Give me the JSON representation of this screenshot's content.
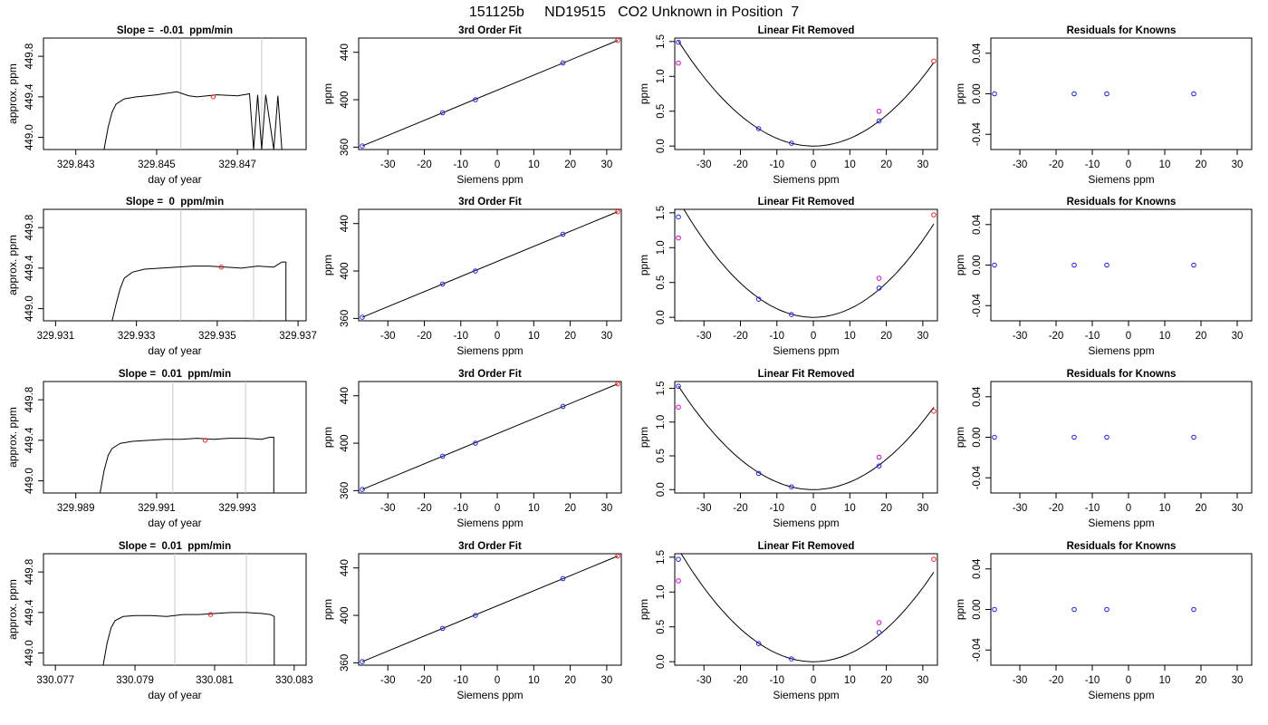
{
  "page_title": "151125b     ND19515   CO2 Unknown in Position  7",
  "colors": {
    "line": "#000000",
    "vline": "#c8c8c8",
    "known": "#1f1fff",
    "fit": "#ff2020",
    "removed_unknown": "#dd00dd"
  },
  "chart_data": [
    {
      "type": "line",
      "row": 0,
      "col": 0,
      "title": "Slope =  -0.01  ppm/min",
      "xlabel": "day of year",
      "ylabel": "approx. ppm",
      "xlim": [
        329.8422,
        329.8487
      ],
      "ylim": [
        448.88,
        449.98
      ],
      "xticks": [
        329.843,
        329.845,
        329.847
      ],
      "xticklabels": [
        "329.843",
        "329.845",
        "329.847"
      ],
      "yticks": [
        449.0,
        449.4,
        449.8
      ],
      "yticklabels": [
        "449.0",
        "449.4",
        "449.8"
      ],
      "x": [
        329.8437,
        329.8438,
        329.8439,
        329.844,
        329.8442,
        329.8445,
        329.845,
        329.8455,
        329.8458,
        329.846,
        329.8465,
        329.847,
        329.8473,
        329.8474,
        329.8475,
        329.8476,
        329.8477,
        329.8479,
        329.848,
        329.8481
      ],
      "y": [
        448.88,
        449.1,
        449.25,
        449.33,
        449.38,
        449.4,
        449.42,
        449.45,
        449.41,
        449.4,
        449.42,
        449.41,
        449.43,
        448.88,
        449.42,
        448.88,
        449.42,
        448.88,
        449.41,
        448.88
      ],
      "vlines": [
        329.8456,
        329.8476
      ],
      "marker": {
        "x": 329.8464,
        "y": 449.4
      }
    },
    {
      "type": "scatter",
      "row": 0,
      "col": 1,
      "title": "3rd Order Fit",
      "xlabel": "Siemens ppm",
      "ylabel": "ppm",
      "xlim": [
        -38,
        34
      ],
      "ylim": [
        358,
        452
      ],
      "xticks": [
        -30,
        -20,
        -10,
        0,
        10,
        20,
        30
      ],
      "yticks": [
        360,
        400,
        440
      ],
      "fit_x": [
        -37,
        33
      ],
      "fit_y": [
        361,
        450
      ],
      "knowns": [
        [
          -37,
          361
        ],
        [
          -15,
          389
        ],
        [
          -6,
          400
        ],
        [
          18,
          431
        ]
      ],
      "unknown": [
        [
          33,
          450
        ]
      ]
    },
    {
      "type": "scatter",
      "row": 0,
      "col": 2,
      "title": "Linear Fit Removed",
      "xlabel": "Siemens ppm",
      "ylabel": "ppm",
      "xlim": [
        -38,
        34
      ],
      "ylim": [
        -0.05,
        1.55
      ],
      "xticks": [
        -30,
        -20,
        -10,
        0,
        10,
        20,
        30
      ],
      "yticks": [
        0.0,
        0.5,
        1.0,
        1.5
      ],
      "yticklabels": [
        "0.0",
        "0.5",
        "1.0",
        "1.5"
      ],
      "curve_coef": [
        0.0011,
        0
      ],
      "curve_range": [
        -37,
        33
      ],
      "knowns": [
        [
          -37,
          1.49
        ],
        [
          -15,
          0.25
        ],
        [
          -6,
          0.04
        ],
        [
          18,
          0.36
        ]
      ],
      "removed": [
        [
          -37,
          1.19
        ],
        [
          18,
          0.5
        ]
      ],
      "unknown": [
        [
          33,
          1.22
        ]
      ]
    },
    {
      "type": "scatter",
      "row": 0,
      "col": 3,
      "title": "Residuals for Knowns",
      "xlabel": "Siemens ppm",
      "ylabel": "ppm",
      "xlim": [
        -38,
        34
      ],
      "ylim": [
        -0.055,
        0.055
      ],
      "xticks": [
        -30,
        -20,
        -10,
        0,
        10,
        20,
        30
      ],
      "yticks": [
        -0.04,
        0.0,
        0.04
      ],
      "yticklabels": [
        "-0.04",
        "0.00",
        "0.04"
      ],
      "knowns": [
        [
          -37,
          0.0
        ],
        [
          -15,
          0.0
        ],
        [
          -6,
          0.0
        ],
        [
          18,
          0.0
        ]
      ]
    },
    {
      "type": "line",
      "row": 1,
      "col": 0,
      "title": "Slope =  0  ppm/min",
      "xlabel": "day of year",
      "ylabel": "approx. ppm",
      "xlim": [
        329.9307,
        329.9372
      ],
      "ylim": [
        448.88,
        449.98
      ],
      "xticks": [
        329.931,
        329.933,
        329.935,
        329.937
      ],
      "xticklabels": [
        "329.931",
        "329.933",
        "329.935",
        "329.937"
      ],
      "yticks": [
        449.0,
        449.4,
        449.8
      ],
      "yticklabels": [
        "449.0",
        "449.4",
        "449.8"
      ],
      "x": [
        329.9324,
        329.9325,
        329.9326,
        329.9327,
        329.9329,
        329.9332,
        329.9336,
        329.934,
        329.9344,
        329.9348,
        329.9352,
        329.9356,
        329.936,
        329.9364,
        329.9366,
        329.9367,
        329.9367
      ],
      "y": [
        448.88,
        449.05,
        449.2,
        449.3,
        449.36,
        449.39,
        449.4,
        449.41,
        449.42,
        449.42,
        449.41,
        449.4,
        449.42,
        449.41,
        449.46,
        449.46,
        448.88
      ],
      "vlines": [
        329.9341,
        329.9359
      ],
      "marker": {
        "x": 329.9351,
        "y": 449.41
      }
    },
    {
      "type": "scatter",
      "row": 1,
      "col": 1,
      "title": "3rd Order Fit",
      "xlabel": "Siemens ppm",
      "ylabel": "ppm",
      "xlim": [
        -38,
        34
      ],
      "ylim": [
        358,
        452
      ],
      "xticks": [
        -30,
        -20,
        -10,
        0,
        10,
        20,
        30
      ],
      "yticks": [
        360,
        400,
        440
      ],
      "fit_x": [
        -37,
        33
      ],
      "fit_y": [
        361,
        450
      ],
      "knowns": [
        [
          -37,
          361
        ],
        [
          -15,
          389
        ],
        [
          -6,
          400
        ],
        [
          18,
          431
        ]
      ],
      "unknown": [
        [
          33,
          450
        ]
      ]
    },
    {
      "type": "scatter",
      "row": 1,
      "col": 2,
      "title": "Linear Fit Removed",
      "xlabel": "Siemens ppm",
      "ylabel": "ppm",
      "xlim": [
        -38,
        34
      ],
      "ylim": [
        -0.05,
        1.55
      ],
      "xticks": [
        -30,
        -20,
        -10,
        0,
        10,
        20,
        30
      ],
      "yticks": [
        0.0,
        0.5,
        1.0,
        1.5
      ],
      "yticklabels": [
        "0.0",
        "0.5",
        "1.0",
        "1.5"
      ],
      "curve_coef": [
        0.00123,
        0
      ],
      "curve_range": [
        -37,
        33
      ],
      "knowns": [
        [
          -37,
          1.44
        ],
        [
          -15,
          0.26
        ],
        [
          -6,
          0.04
        ],
        [
          18,
          0.42
        ]
      ],
      "removed": [
        [
          -37,
          1.14
        ],
        [
          18,
          0.56
        ]
      ],
      "unknown": [
        [
          33,
          1.47
        ]
      ]
    },
    {
      "type": "scatter",
      "row": 1,
      "col": 3,
      "title": "Residuals for Knowns",
      "xlabel": "Siemens ppm",
      "ylabel": "ppm",
      "xlim": [
        -38,
        34
      ],
      "ylim": [
        -0.055,
        0.055
      ],
      "xticks": [
        -30,
        -20,
        -10,
        0,
        10,
        20,
        30
      ],
      "yticks": [
        -0.04,
        0.0,
        0.04
      ],
      "yticklabels": [
        "-0.04",
        "0.00",
        "0.04"
      ],
      "knowns": [
        [
          -37,
          0.0
        ],
        [
          -15,
          0.0
        ],
        [
          -6,
          0.0
        ],
        [
          18,
          0.0
        ]
      ]
    },
    {
      "type": "line",
      "row": 2,
      "col": 0,
      "title": "Slope =  0.01  ppm/min",
      "xlabel": "day of year",
      "ylabel": "approx. ppm",
      "xlim": [
        329.9882,
        329.9947
      ],
      "ylim": [
        448.88,
        449.98
      ],
      "xticks": [
        329.989,
        329.991,
        329.993
      ],
      "xticklabels": [
        "329.989",
        "329.991",
        "329.993"
      ],
      "yticks": [
        449.0,
        449.4,
        449.8
      ],
      "yticklabels": [
        "449.0",
        "449.4",
        "449.8"
      ],
      "x": [
        329.9896,
        329.9897,
        329.9898,
        329.9899,
        329.9901,
        329.9904,
        329.9908,
        329.9912,
        329.9916,
        329.992,
        329.9924,
        329.9928,
        329.9932,
        329.9936,
        329.9938,
        329.9939,
        329.9939
      ],
      "y": [
        448.88,
        449.1,
        449.25,
        449.32,
        449.37,
        449.39,
        449.4,
        449.41,
        449.41,
        449.42,
        449.41,
        449.42,
        449.42,
        449.41,
        449.43,
        449.43,
        448.88
      ],
      "vlines": [
        329.9914,
        329.9932
      ],
      "marker": {
        "x": 329.9922,
        "y": 449.4
      }
    },
    {
      "type": "scatter",
      "row": 2,
      "col": 1,
      "title": "3rd Order Fit",
      "xlabel": "Siemens ppm",
      "ylabel": "ppm",
      "xlim": [
        -38,
        34
      ],
      "ylim": [
        358,
        452
      ],
      "xticks": [
        -30,
        -20,
        -10,
        0,
        10,
        20,
        30
      ],
      "yticks": [
        360,
        400,
        440
      ],
      "fit_x": [
        -37,
        33
      ],
      "fit_y": [
        361,
        450
      ],
      "knowns": [
        [
          -37,
          361
        ],
        [
          -15,
          389
        ],
        [
          -6,
          400
        ],
        [
          18,
          431
        ]
      ],
      "unknown": [
        [
          33,
          450
        ]
      ]
    },
    {
      "type": "scatter",
      "row": 2,
      "col": 2,
      "title": "Linear Fit Removed",
      "xlabel": "Siemens ppm",
      "ylabel": "ppm",
      "xlim": [
        -38,
        34
      ],
      "ylim": [
        -0.05,
        1.6
      ],
      "xticks": [
        -30,
        -20,
        -10,
        0,
        10,
        20,
        30
      ],
      "yticks": [
        0.0,
        0.5,
        1.0,
        1.5
      ],
      "yticklabels": [
        "0.0",
        "0.5",
        "1.0",
        "1.5"
      ],
      "curve_coef": [
        0.00112,
        0
      ],
      "curve_range": [
        -37,
        33
      ],
      "knowns": [
        [
          -37,
          1.53
        ],
        [
          -15,
          0.24
        ],
        [
          -6,
          0.04
        ],
        [
          18,
          0.35
        ]
      ],
      "removed": [
        [
          -37,
          1.22
        ],
        [
          18,
          0.48
        ]
      ],
      "unknown": [
        [
          33,
          1.16
        ]
      ]
    },
    {
      "type": "scatter",
      "row": 2,
      "col": 3,
      "title": "Residuals for Knowns",
      "xlabel": "Siemens ppm",
      "ylabel": "ppm",
      "xlim": [
        -38,
        34
      ],
      "ylim": [
        -0.055,
        0.055
      ],
      "xticks": [
        -30,
        -20,
        -10,
        0,
        10,
        20,
        30
      ],
      "yticks": [
        -0.04,
        0.0,
        0.04
      ],
      "yticklabels": [
        "-0.04",
        "0.00",
        "0.04"
      ],
      "knowns": [
        [
          -37,
          0.0
        ],
        [
          -15,
          0.0
        ],
        [
          -6,
          0.0
        ],
        [
          18,
          0.0
        ]
      ]
    },
    {
      "type": "line",
      "row": 3,
      "col": 0,
      "title": "Slope =  0.01  ppm/min",
      "xlabel": "day of year",
      "ylabel": "approx. ppm",
      "xlim": [
        330.0767,
        330.0833
      ],
      "ylim": [
        448.88,
        449.98
      ],
      "xticks": [
        330.077,
        330.079,
        330.081,
        330.083
      ],
      "xticklabels": [
        "330.077",
        "330.079",
        "330.081",
        "330.083"
      ],
      "yticks": [
        449.0,
        449.4,
        449.8
      ],
      "yticklabels": [
        "449.0",
        "449.4",
        "449.8"
      ],
      "x": [
        330.0782,
        330.0783,
        330.0784,
        330.0785,
        330.0787,
        330.079,
        330.0794,
        330.0798,
        330.0802,
        330.0806,
        330.081,
        330.0814,
        330.0818,
        330.0822,
        330.0824,
        330.0825,
        330.0825
      ],
      "y": [
        448.88,
        449.1,
        449.25,
        449.32,
        449.36,
        449.37,
        449.37,
        449.36,
        449.38,
        449.38,
        449.39,
        449.4,
        449.4,
        449.39,
        449.38,
        449.36,
        448.88
      ],
      "vlines": [
        330.08,
        330.0818
      ],
      "marker": {
        "x": 330.0809,
        "y": 449.38
      }
    },
    {
      "type": "scatter",
      "row": 3,
      "col": 1,
      "title": "3rd Order Fit",
      "xlabel": "Siemens ppm",
      "ylabel": "ppm",
      "xlim": [
        -38,
        34
      ],
      "ylim": [
        358,
        452
      ],
      "xticks": [
        -30,
        -20,
        -10,
        0,
        10,
        20,
        30
      ],
      "yticks": [
        360,
        400,
        440
      ],
      "fit_x": [
        -37,
        33
      ],
      "fit_y": [
        361,
        450
      ],
      "knowns": [
        [
          -37,
          361
        ],
        [
          -15,
          389
        ],
        [
          -6,
          400
        ],
        [
          18,
          431
        ]
      ],
      "unknown": [
        [
          33,
          450
        ]
      ]
    },
    {
      "type": "scatter",
      "row": 3,
      "col": 2,
      "title": "Linear Fit Removed",
      "xlabel": "Siemens ppm",
      "ylabel": "ppm",
      "xlim": [
        -38,
        34
      ],
      "ylim": [
        -0.05,
        1.55
      ],
      "xticks": [
        -30,
        -20,
        -10,
        0,
        10,
        20,
        30
      ],
      "yticks": [
        0.0,
        0.5,
        1.0,
        1.5
      ],
      "yticklabels": [
        "0.0",
        "0.5",
        "1.0",
        "1.5"
      ],
      "curve_coef": [
        0.00118,
        0
      ],
      "curve_range": [
        -37,
        33
      ],
      "knowns": [
        [
          -37,
          1.47
        ],
        [
          -15,
          0.26
        ],
        [
          -6,
          0.04
        ],
        [
          18,
          0.42
        ]
      ],
      "removed": [
        [
          -37,
          1.16
        ],
        [
          18,
          0.56
        ]
      ],
      "unknown": [
        [
          33,
          1.47
        ]
      ]
    },
    {
      "type": "scatter",
      "row": 3,
      "col": 3,
      "title": "Residuals for Knowns",
      "xlabel": "Siemens ppm",
      "ylabel": "ppm",
      "xlim": [
        -38,
        34
      ],
      "ylim": [
        -0.055,
        0.055
      ],
      "xticks": [
        -30,
        -20,
        -10,
        0,
        10,
        20,
        30
      ],
      "yticks": [
        -0.04,
        0.0,
        0.04
      ],
      "yticklabels": [
        "-0.04",
        "0.00",
        "0.04"
      ],
      "knowns": [
        [
          -37,
          0.0
        ],
        [
          -15,
          0.0
        ],
        [
          -6,
          0.0
        ],
        [
          18,
          0.0
        ]
      ]
    }
  ]
}
